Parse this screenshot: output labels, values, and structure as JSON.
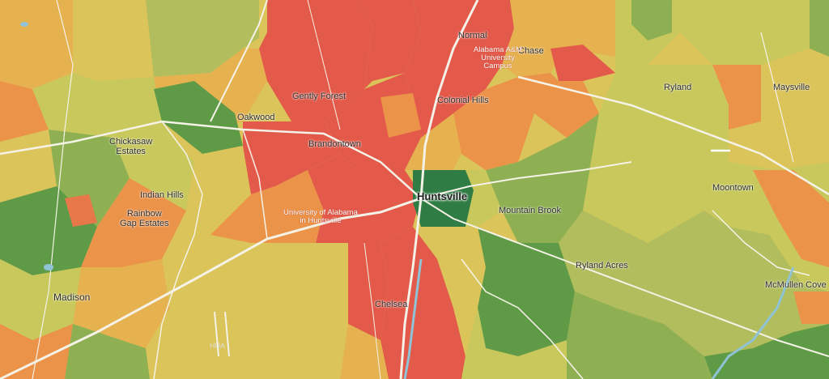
{
  "map": {
    "colors": {
      "red": "#e35a4a",
      "red_orange": "#e8774a",
      "orange": "#ec934a",
      "yellow_orange": "#e6b24f",
      "yellow": "#dbc45a",
      "yellow_green": "#c8c85d",
      "light_green": "#b2bd5e",
      "green": "#8fb052",
      "dark_green": "#5f9a46",
      "darkest_green": "#2f7d45",
      "road": "#f5f2e8",
      "water": "#8fc3d6"
    },
    "labels": {
      "normal": "Normal",
      "chase": "Chase",
      "ryland": "Ryland",
      "maysville": "Maysville",
      "alabama_am": "Alabama A&M University Campus",
      "gently_forest": "Gently Forest",
      "colonial_hills": "Colonial Hills",
      "oakwood": "Oakwood",
      "chickasaw_estates": "Chickasaw\nEstates",
      "brandontown": "Brandontown",
      "huntsville": "Huntsville",
      "indian_hills": "Indian Hills",
      "rainbow_gap": "Rainbow\nGap Estates",
      "uah": "University of Alabama\nin Huntsville",
      "mountain_brook": "Mountain Brook",
      "moontown": "Moontown",
      "ryland_acres": "Ryland Acres",
      "madison": "Madison",
      "chelsea": "Chelsea",
      "mcmullen_cove": "McMullen Cove",
      "hua": "HUA"
    }
  }
}
